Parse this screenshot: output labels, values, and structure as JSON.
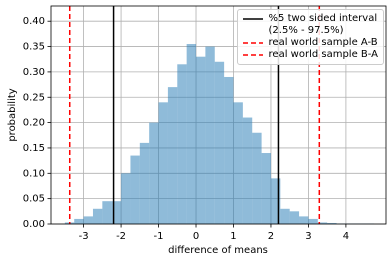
{
  "chart_data": {
    "type": "histogram",
    "xlabel": "difference of means",
    "ylabel": "probability",
    "bins": [
      -3.5,
      -3.25,
      -3.0,
      -2.75,
      -2.5,
      -2.25,
      -2.0,
      -1.75,
      -1.5,
      -1.25,
      -1.0,
      -0.75,
      -0.5,
      -0.25,
      0,
      0.25,
      0.5,
      0.75,
      1.0,
      1.25,
      1.5,
      1.75,
      2.0,
      2.25,
      2.5,
      2.75,
      3.0,
      3.25,
      3.5,
      3.75,
      4.0,
      4.25,
      4.5,
      4.75
    ],
    "values": [
      0.003,
      0.01,
      0.015,
      0.03,
      0.045,
      0.045,
      0.1,
      0.135,
      0.16,
      0.2,
      0.24,
      0.27,
      0.315,
      0.355,
      0.33,
      0.35,
      0.32,
      0.29,
      0.24,
      0.21,
      0.18,
      0.14,
      0.09,
      0.03,
      0.025,
      0.015,
      0.01,
      0.003,
      0.002,
      0.001,
      0.001,
      0.001,
      0.001
    ],
    "color": "#1f77b4",
    "opacity": 0.5,
    "lines": [
      {
        "name": "%5 two sided interval\n(2.5% - 97.5%)",
        "color": "#000000",
        "dashed": false,
        "x": [
          -2.2,
          2.2
        ]
      },
      {
        "name": "real world sample A-B",
        "color": "#ff0000",
        "dashed": true,
        "x": [
          -3.37
        ]
      },
      {
        "name": "real world sample B-A",
        "color": "#ff0000",
        "dashed": true,
        "x": [
          3.29
        ]
      }
    ],
    "xlim": [
      -3.87,
      5.07
    ],
    "ylim": [
      0,
      0.43
    ],
    "xticks": [
      -3,
      -2,
      -1,
      0,
      1,
      2,
      3,
      4
    ],
    "yticks": [
      {
        "value": 0,
        "label": "0.00"
      },
      {
        "value": 0.05,
        "label": "0.05"
      },
      {
        "value": 0.1,
        "label": "0.10"
      },
      {
        "value": 0.15,
        "label": "0.15"
      },
      {
        "value": 0.2,
        "label": "0.20"
      },
      {
        "value": 0.25,
        "label": "0.25"
      },
      {
        "value": 0.3,
        "label": "0.30"
      },
      {
        "value": 0.35,
        "label": "0.35"
      },
      {
        "value": 0.4,
        "label": "0.40"
      }
    ],
    "grid": true,
    "legend": "upper right"
  }
}
